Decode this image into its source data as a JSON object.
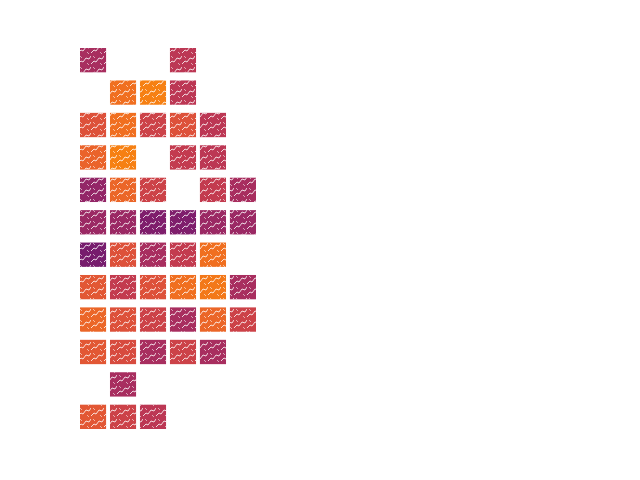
{
  "chart_data": {
    "type": "heatmap",
    "color": "inferno",
    "tick_labels": false,
    "zlim": [
      0,
      1
    ],
    "cells": [
      [
        0.45,
        null,
        null,
        0.5,
        null,
        null
      ],
      [
        null,
        0.68,
        0.72,
        0.5,
        null,
        null
      ],
      [
        0.6,
        0.68,
        0.55,
        0.6,
        0.5,
        null
      ],
      [
        0.65,
        0.72,
        null,
        0.52,
        0.5,
        null
      ],
      [
        0.4,
        0.66,
        0.55,
        null,
        0.52,
        0.45
      ],
      [
        0.42,
        0.42,
        0.35,
        0.35,
        0.42,
        0.42
      ],
      [
        0.33,
        0.6,
        0.45,
        0.52,
        0.68,
        null
      ],
      [
        0.62,
        0.52,
        0.6,
        0.68,
        0.7,
        0.45
      ],
      [
        0.66,
        0.6,
        0.55,
        0.45,
        0.66,
        0.55
      ],
      [
        0.62,
        0.58,
        0.45,
        0.55,
        0.45,
        null
      ],
      [
        null,
        0.45,
        null,
        null,
        null,
        null
      ],
      [
        0.62,
        0.55,
        0.5,
        null,
        null,
        null
      ]
    ]
  }
}
